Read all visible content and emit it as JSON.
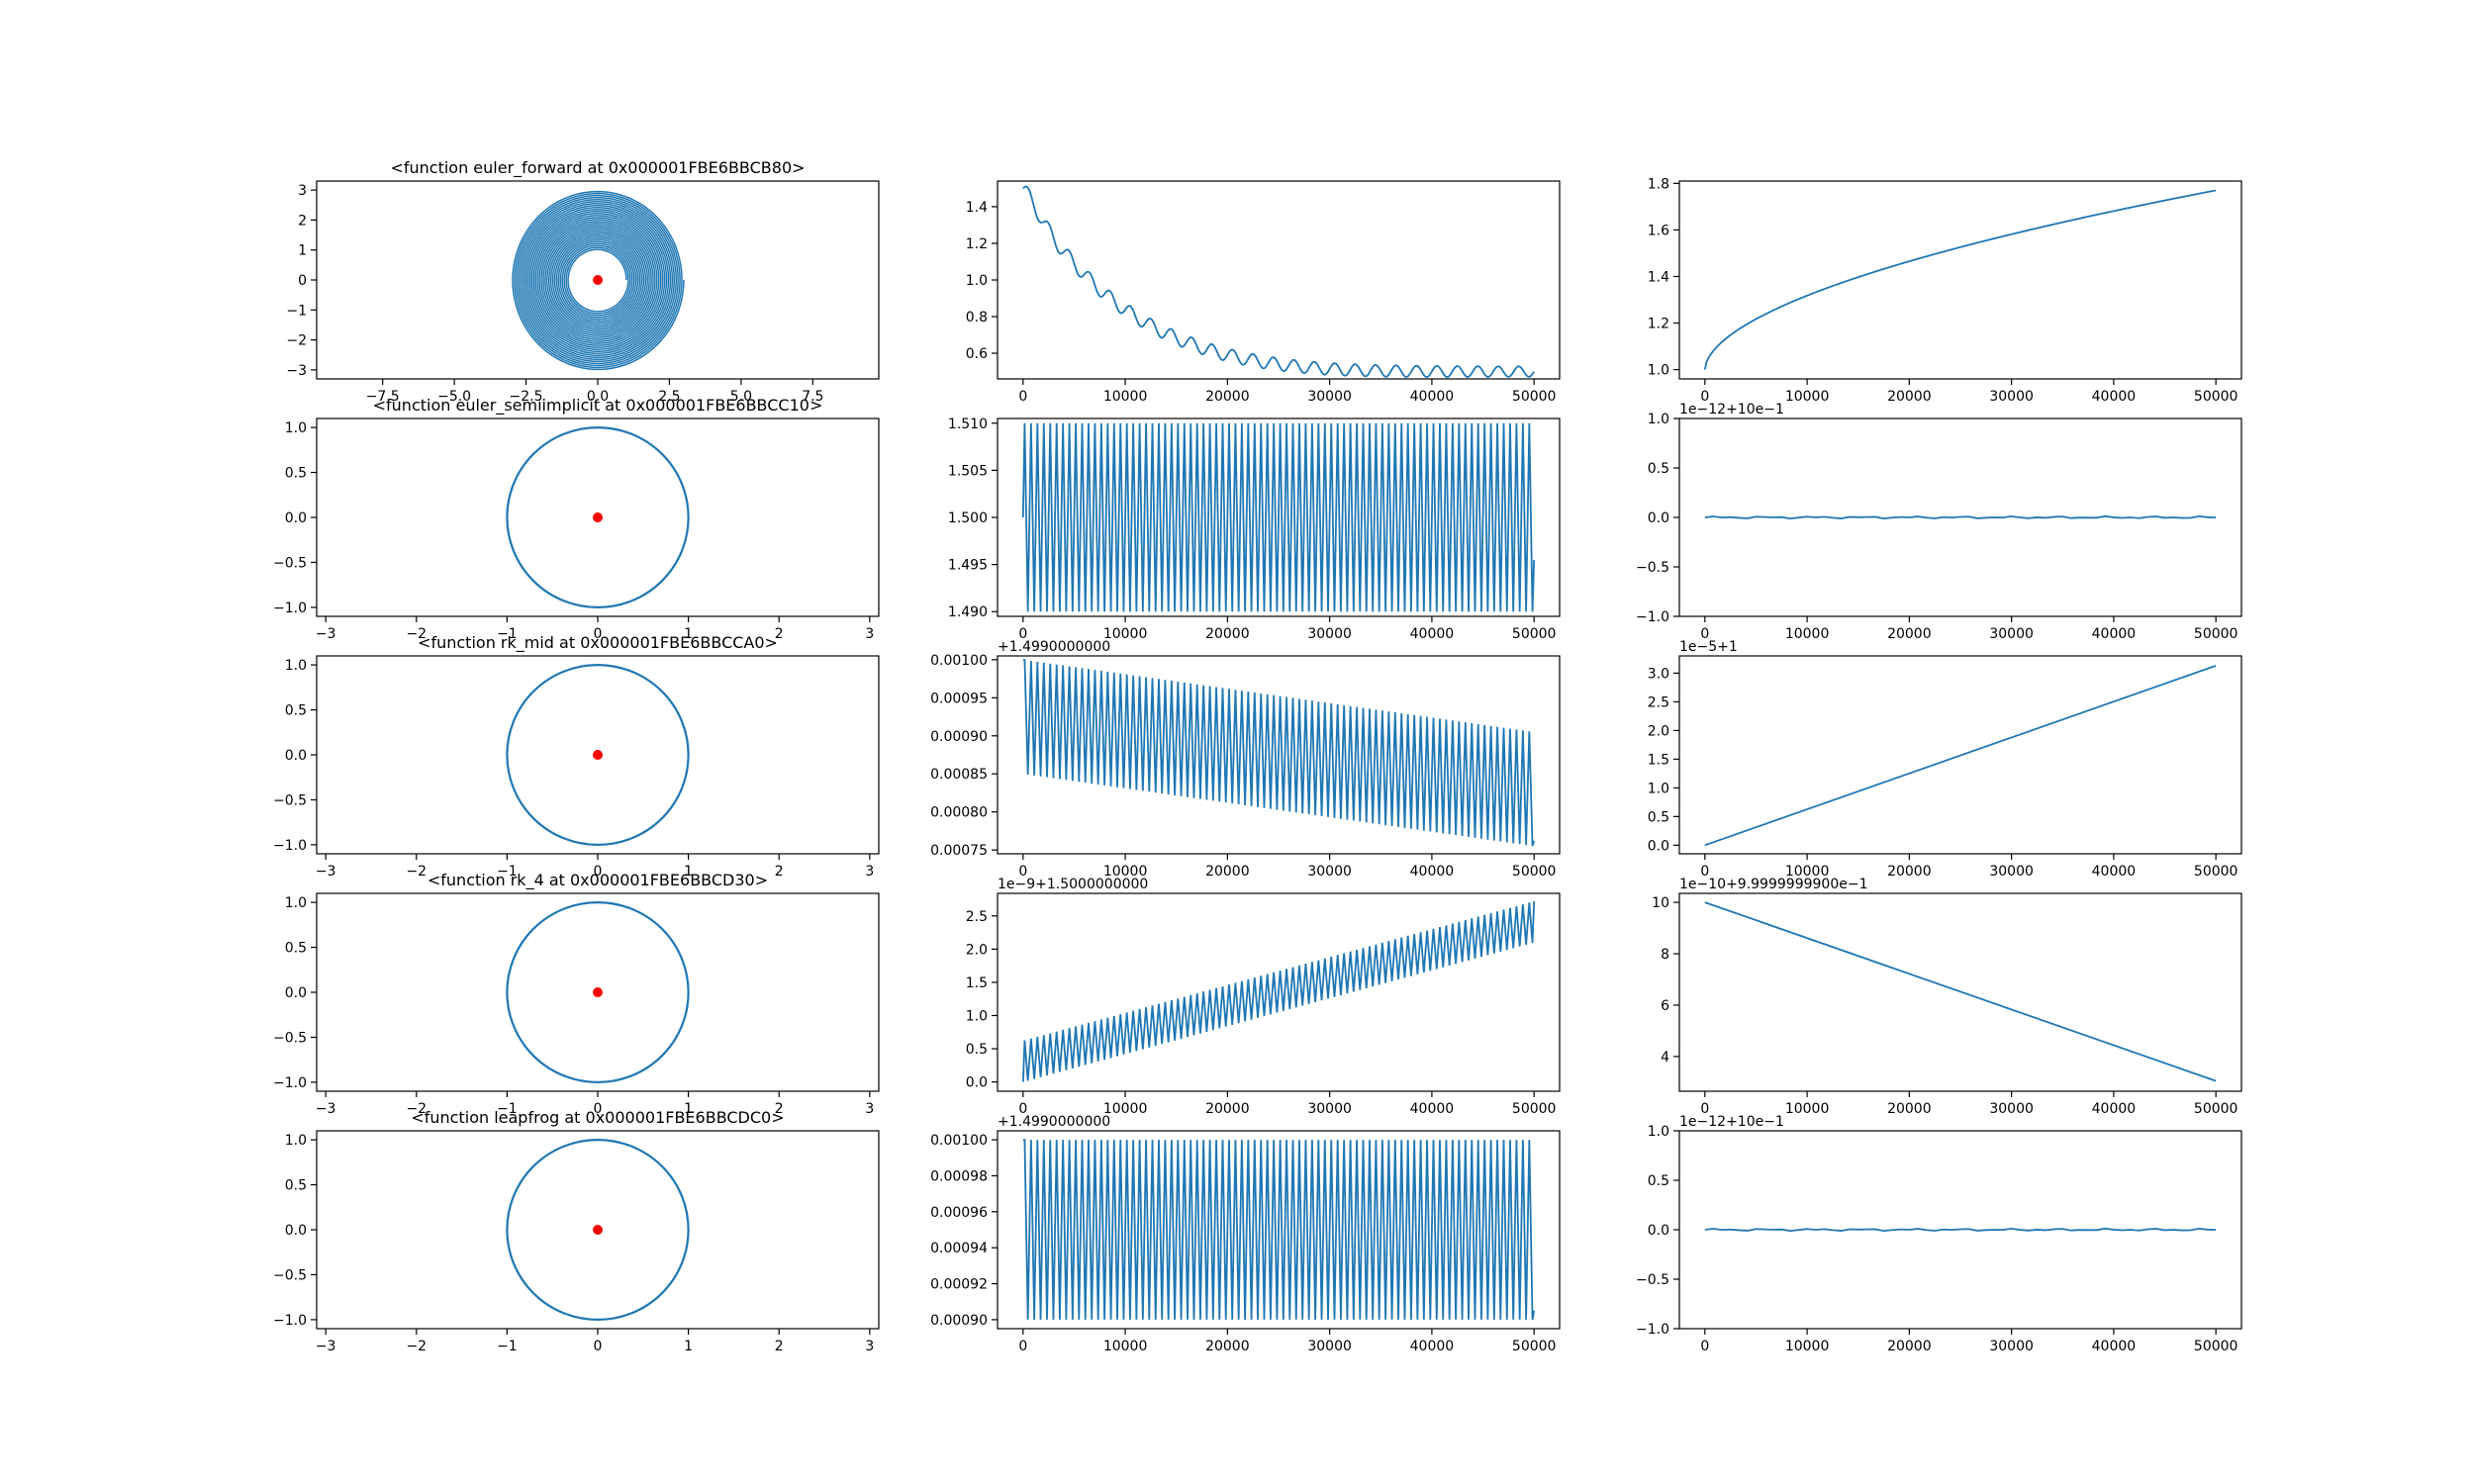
{
  "colors": {
    "line": "#1f77b4",
    "marker": "#ff0000",
    "frame": "#000000",
    "background": "#ffffff"
  },
  "chart_data": [
    {
      "type": "line",
      "title": "<function euler_forward at 0x000001FBE6BBCB80>",
      "xlabel": "",
      "ylabel": "",
      "xlim": [
        -9.8,
        9.8
      ],
      "ylim": [
        -3.3,
        3.3
      ],
      "x_ticks": [
        -7.5,
        -5.0,
        -2.5,
        0.0,
        2.5,
        5.0,
        7.5
      ],
      "x_tick_labels": [
        "−7.5",
        "−5.0",
        "−2.5",
        "0.0",
        "2.5",
        "5.0",
        "7.5"
      ],
      "y_ticks": [
        -3,
        -2,
        -1,
        0,
        1,
        2,
        3
      ],
      "y_tick_labels": [
        "−3",
        "−2",
        "−1",
        "0",
        "1",
        "2",
        "3"
      ],
      "series": [
        {
          "kind": "spiral",
          "r_start": 1.0,
          "r_end": 3.0,
          "turns": 30
        }
      ],
      "marker": {
        "x": 0,
        "y": 0
      }
    },
    {
      "type": "line",
      "title": "",
      "xlim": [
        -2500,
        52500
      ],
      "ylim": [
        0.46,
        1.54
      ],
      "x_ticks": [
        0,
        10000,
        20000,
        30000,
        40000,
        50000
      ],
      "x_tick_labels": [
        "0",
        "10000",
        "20000",
        "30000",
        "40000",
        "50000"
      ],
      "y_ticks": [
        0.6,
        0.8,
        1.0,
        1.2,
        1.4
      ],
      "y_tick_labels": [
        "0.6",
        "0.8",
        "1.0",
        "1.2",
        "1.4"
      ],
      "series": [
        {
          "kind": "decay",
          "start": 1.5,
          "end": 0.5,
          "wiggle": 0.04,
          "periods": 25
        }
      ]
    },
    {
      "type": "line",
      "title": "",
      "xlim": [
        -2500,
        52500
      ],
      "ylim": [
        0.96,
        1.81
      ],
      "x_ticks": [
        0,
        10000,
        20000,
        30000,
        40000,
        50000
      ],
      "x_tick_labels": [
        "0",
        "10000",
        "20000",
        "30000",
        "40000",
        "50000"
      ],
      "y_ticks": [
        1.0,
        1.2,
        1.4,
        1.6,
        1.8
      ],
      "y_tick_labels": [
        "1.0",
        "1.2",
        "1.4",
        "1.6",
        "1.8"
      ],
      "series": [
        {
          "kind": "sqrt",
          "start": 1.0,
          "end": 1.77
        }
      ]
    },
    {
      "type": "line",
      "title": "<function euler_semiimplicit at 0x000001FBE6BBCC10>",
      "xlim": [
        -3.1,
        3.1
      ],
      "ylim": [
        -1.1,
        1.1
      ],
      "x_ticks": [
        -3,
        -2,
        -1,
        0,
        1,
        2,
        3
      ],
      "x_tick_labels": [
        "−3",
        "−2",
        "−1",
        "0",
        "1",
        "2",
        "3"
      ],
      "y_ticks": [
        -1.0,
        -0.5,
        0.0,
        0.5,
        1.0
      ],
      "y_tick_labels": [
        "−1.0",
        "−0.5",
        "0.0",
        "0.5",
        "1.0"
      ],
      "series": [
        {
          "kind": "circle",
          "r": 1.0
        }
      ],
      "marker": {
        "x": 0,
        "y": 0
      }
    },
    {
      "type": "line",
      "title": "",
      "xlim": [
        -2500,
        52500
      ],
      "ylim": [
        1.4895,
        1.5105
      ],
      "x_ticks": [
        0,
        10000,
        20000,
        30000,
        40000,
        50000
      ],
      "x_tick_labels": [
        "0",
        "10000",
        "20000",
        "30000",
        "40000",
        "50000"
      ],
      "y_ticks": [
        1.49,
        1.495,
        1.5,
        1.505,
        1.51
      ],
      "y_tick_labels": [
        "1.490",
        "1.495",
        "1.500",
        "1.505",
        "1.510"
      ],
      "series": [
        {
          "kind": "osc",
          "top0": 1.51,
          "top1": 1.51,
          "bot0": 1.49,
          "bot1": 1.49,
          "periods": 80,
          "start": 1.5,
          "end": 1.4955
        }
      ]
    },
    {
      "type": "line",
      "title": "",
      "offset_label": "1e−12+10e−1",
      "xlim": [
        -2500,
        52500
      ],
      "ylim": [
        -1.0,
        1.0
      ],
      "x_ticks": [
        0,
        10000,
        20000,
        30000,
        40000,
        50000
      ],
      "x_tick_labels": [
        "0",
        "10000",
        "20000",
        "30000",
        "40000",
        "50000"
      ],
      "y_ticks": [
        -1.0,
        -0.5,
        0.0,
        0.5,
        1.0
      ],
      "y_tick_labels": [
        "−1.0",
        "−0.5",
        "0.0",
        "0.5",
        "1.0"
      ],
      "series": [
        {
          "kind": "flat",
          "value": 0.0,
          "noise": 0.012
        }
      ]
    },
    {
      "type": "line",
      "title": "<function rk_mid at 0x000001FBE6BBCCA0>",
      "xlim": [
        -3.1,
        3.1
      ],
      "ylim": [
        -1.1,
        1.1
      ],
      "x_ticks": [
        -3,
        -2,
        -1,
        0,
        1,
        2,
        3
      ],
      "x_tick_labels": [
        "−3",
        "−2",
        "−1",
        "0",
        "1",
        "2",
        "3"
      ],
      "y_ticks": [
        -1.0,
        -0.5,
        0.0,
        0.5,
        1.0
      ],
      "y_tick_labels": [
        "−1.0",
        "−0.5",
        "0.0",
        "0.5",
        "1.0"
      ],
      "series": [
        {
          "kind": "circle",
          "r": 1.0
        }
      ],
      "marker": {
        "x": 0,
        "y": 0
      }
    },
    {
      "type": "line",
      "title": "",
      "offset_label": "+1.4990000000",
      "xlim": [
        -2500,
        52500
      ],
      "ylim": [
        0.000745,
        0.001005
      ],
      "x_ticks": [
        0,
        10000,
        20000,
        30000,
        40000,
        50000
      ],
      "x_tick_labels": [
        "0",
        "10000",
        "20000",
        "30000",
        "40000",
        "50000"
      ],
      "y_ticks": [
        0.00075,
        0.0008,
        0.00085,
        0.0009,
        0.00095,
        0.001
      ],
      "y_tick_labels": [
        "0.00075",
        "0.00080",
        "0.00085",
        "0.00090",
        "0.00095",
        "0.00100"
      ],
      "series": [
        {
          "kind": "osc",
          "top0": 0.001,
          "top1": 0.000905,
          "bot0": 0.00085,
          "bot1": 0.000755,
          "periods": 80,
          "start": 0.001,
          "end": 0.000762
        }
      ]
    },
    {
      "type": "line",
      "title": "",
      "offset_label": "1e−5+1",
      "xlim": [
        -2500,
        52500
      ],
      "ylim": [
        -0.15,
        3.3
      ],
      "x_ticks": [
        0,
        10000,
        20000,
        30000,
        40000,
        50000
      ],
      "x_tick_labels": [
        "0",
        "10000",
        "20000",
        "30000",
        "40000",
        "50000"
      ],
      "y_ticks": [
        0.0,
        0.5,
        1.0,
        1.5,
        2.0,
        2.5,
        3.0
      ],
      "y_tick_labels": [
        "0.0",
        "0.5",
        "1.0",
        "1.5",
        "2.0",
        "2.5",
        "3.0"
      ],
      "series": [
        {
          "kind": "linear",
          "start": 0.0,
          "end": 3.13
        }
      ]
    },
    {
      "type": "line",
      "title": "<function rk_4 at 0x000001FBE6BBCD30>",
      "xlim": [
        -3.1,
        3.1
      ],
      "ylim": [
        -1.1,
        1.1
      ],
      "x_ticks": [
        -3,
        -2,
        -1,
        0,
        1,
        2,
        3
      ],
      "x_tick_labels": [
        "−3",
        "−2",
        "−1",
        "0",
        "1",
        "2",
        "3"
      ],
      "y_ticks": [
        -1.0,
        -0.5,
        0.0,
        0.5,
        1.0
      ],
      "y_tick_labels": [
        "−1.0",
        "−0.5",
        "0.0",
        "0.5",
        "1.0"
      ],
      "series": [
        {
          "kind": "circle",
          "r": 1.0
        }
      ],
      "marker": {
        "x": 0,
        "y": 0
      }
    },
    {
      "type": "line",
      "title": "",
      "offset_label": "1e−9+1.5000000000",
      "xlim": [
        -2500,
        52500
      ],
      "ylim": [
        -0.14,
        2.84
      ],
      "x_ticks": [
        0,
        10000,
        20000,
        30000,
        40000,
        50000
      ],
      "x_tick_labels": [
        "0",
        "10000",
        "20000",
        "30000",
        "40000",
        "50000"
      ],
      "y_ticks": [
        0.0,
        0.5,
        1.0,
        1.5,
        2.0,
        2.5
      ],
      "y_tick_labels": [
        "0.0",
        "0.5",
        "1.0",
        "1.5",
        "2.0",
        "2.5"
      ],
      "series": [
        {
          "kind": "osc",
          "top0": 0.62,
          "top1": 2.72,
          "bot0": 0.0,
          "bot1": 2.1,
          "periods": 80,
          "start": 0.0,
          "end": 2.72
        }
      ]
    },
    {
      "type": "line",
      "title": "",
      "offset_label": "1e−10+9.9999999900e−1",
      "xlim": [
        -2500,
        52500
      ],
      "ylim": [
        2.65,
        10.35
      ],
      "x_ticks": [
        0,
        10000,
        20000,
        30000,
        40000,
        50000
      ],
      "x_tick_labels": [
        "0",
        "10000",
        "20000",
        "30000",
        "40000",
        "50000"
      ],
      "y_ticks": [
        4,
        6,
        8,
        10
      ],
      "y_tick_labels": [
        "4",
        "6",
        "8",
        "10"
      ],
      "series": [
        {
          "kind": "linear",
          "start": 10.0,
          "end": 3.05
        }
      ]
    },
    {
      "type": "line",
      "title": "<function leapfrog at 0x000001FBE6BBCDC0>",
      "xlim": [
        -3.1,
        3.1
      ],
      "ylim": [
        -1.1,
        1.1
      ],
      "x_ticks": [
        -3,
        -2,
        -1,
        0,
        1,
        2,
        3
      ],
      "x_tick_labels": [
        "−3",
        "−2",
        "−1",
        "0",
        "1",
        "2",
        "3"
      ],
      "y_ticks": [
        -1.0,
        -0.5,
        0.0,
        0.5,
        1.0
      ],
      "y_tick_labels": [
        "−1.0",
        "−0.5",
        "0.0",
        "0.5",
        "1.0"
      ],
      "series": [
        {
          "kind": "circle",
          "r": 1.0
        }
      ],
      "marker": {
        "x": 0,
        "y": 0
      }
    },
    {
      "type": "line",
      "title": "",
      "offset_label": "+1.4990000000",
      "xlim": [
        -2500,
        52500
      ],
      "ylim": [
        0.000895,
        0.001005
      ],
      "x_ticks": [
        0,
        10000,
        20000,
        30000,
        40000,
        50000
      ],
      "x_tick_labels": [
        "0",
        "10000",
        "20000",
        "30000",
        "40000",
        "50000"
      ],
      "y_ticks": [
        0.0009,
        0.00092,
        0.00094,
        0.00096,
        0.00098,
        0.001
      ],
      "y_tick_labels": [
        "0.00090",
        "0.00092",
        "0.00094",
        "0.00096",
        "0.00098",
        "0.00100"
      ],
      "series": [
        {
          "kind": "osc",
          "top0": 0.001,
          "top1": 0.001,
          "bot0": 0.0009,
          "bot1": 0.0009,
          "periods": 80,
          "start": 0.001,
          "end": 0.000905
        }
      ]
    },
    {
      "type": "line",
      "title": "",
      "offset_label": "1e−12+10e−1",
      "xlim": [
        -2500,
        52500
      ],
      "ylim": [
        -1.0,
        1.0
      ],
      "x_ticks": [
        0,
        10000,
        20000,
        30000,
        40000,
        50000
      ],
      "x_tick_labels": [
        "0",
        "10000",
        "20000",
        "30000",
        "40000",
        "50000"
      ],
      "y_ticks": [
        -1.0,
        -0.5,
        0.0,
        0.5,
        1.0
      ],
      "y_tick_labels": [
        "−1.0",
        "−0.5",
        "0.0",
        "0.5",
        "1.0"
      ],
      "series": [
        {
          "kind": "flat",
          "value": 0.0,
          "noise": 0.012
        }
      ]
    }
  ]
}
